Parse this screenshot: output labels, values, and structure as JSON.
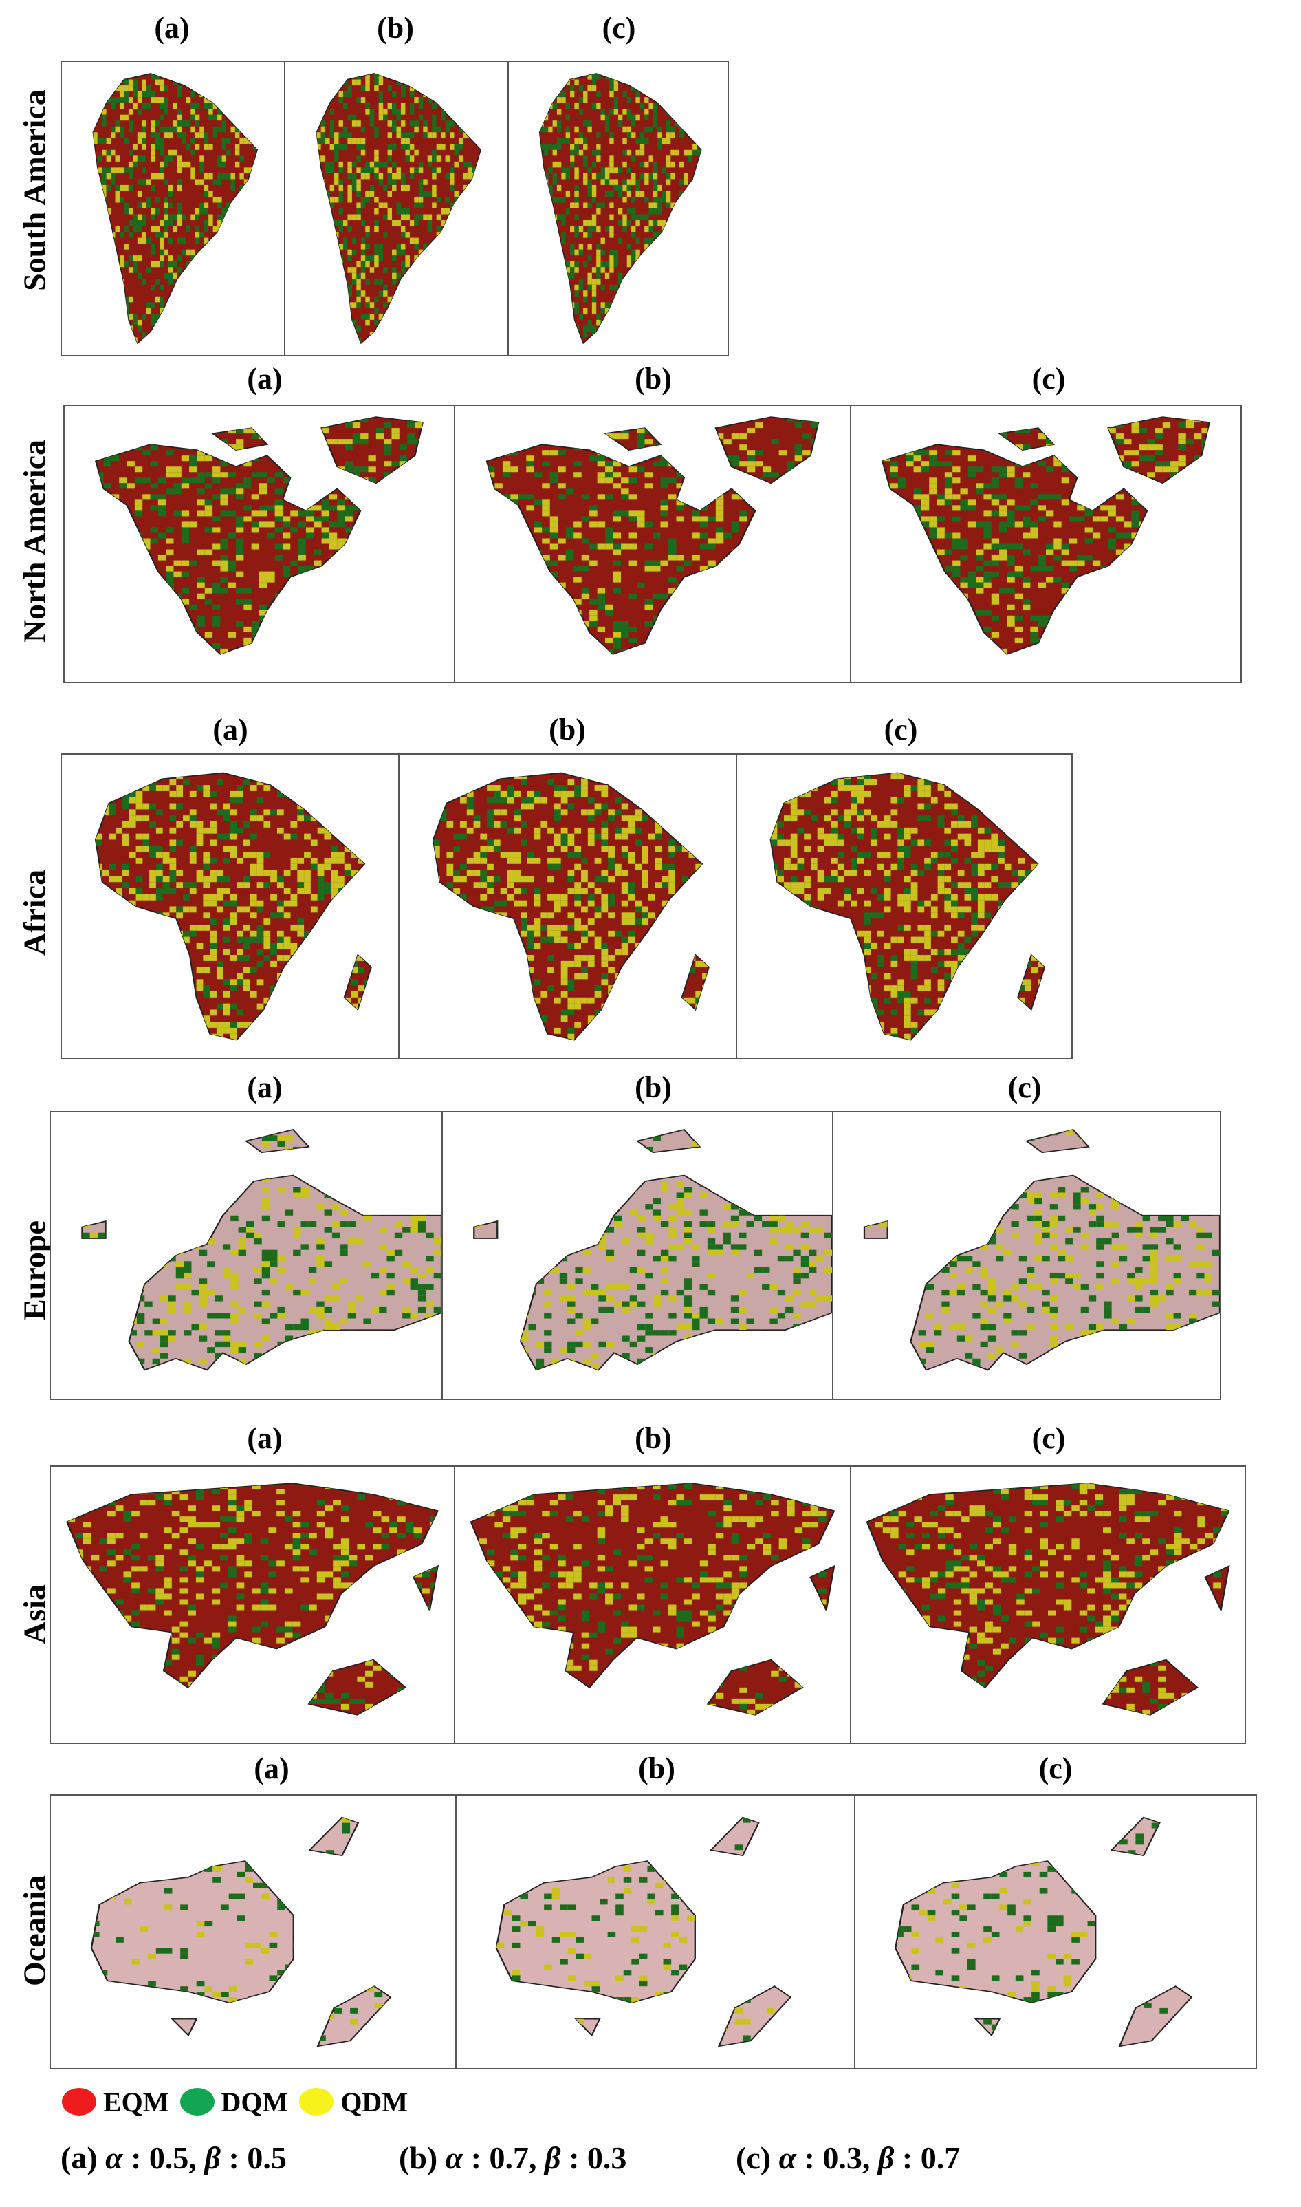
{
  "panel_labels": [
    "(a)",
    "(b)",
    "(c)"
  ],
  "regions": [
    {
      "name": "South America",
      "key": "sa"
    },
    {
      "name": "North America",
      "key": "na"
    },
    {
      "name": "Africa",
      "key": "af"
    },
    {
      "name": "Europe",
      "key": "eu"
    },
    {
      "name": "Asia",
      "key": "as"
    },
    {
      "name": "Oceania",
      "key": "oc"
    }
  ],
  "legend": [
    {
      "label": "EQM",
      "color": "#ee1c1c"
    },
    {
      "label": "DQM",
      "color": "#12a552"
    },
    {
      "label": "QDM",
      "color": "#f7f21c"
    }
  ],
  "params": [
    {
      "label": "(a)",
      "alpha": "0.5",
      "beta": "0.5"
    },
    {
      "label": "(b)",
      "alpha": "0.7",
      "beta": "0.3"
    },
    {
      "label": "(c)",
      "alpha": "0.3",
      "beta": "0.7"
    }
  ],
  "symbols": {
    "alpha": "α",
    "beta": "β",
    "sep": ":",
    "comma": ","
  },
  "map_colors": {
    "eqm_dark": "#8e1a12",
    "dqm_dark": "#1d6b1d",
    "qdm_dark": "#c9c21f",
    "outline": "#222222"
  }
}
